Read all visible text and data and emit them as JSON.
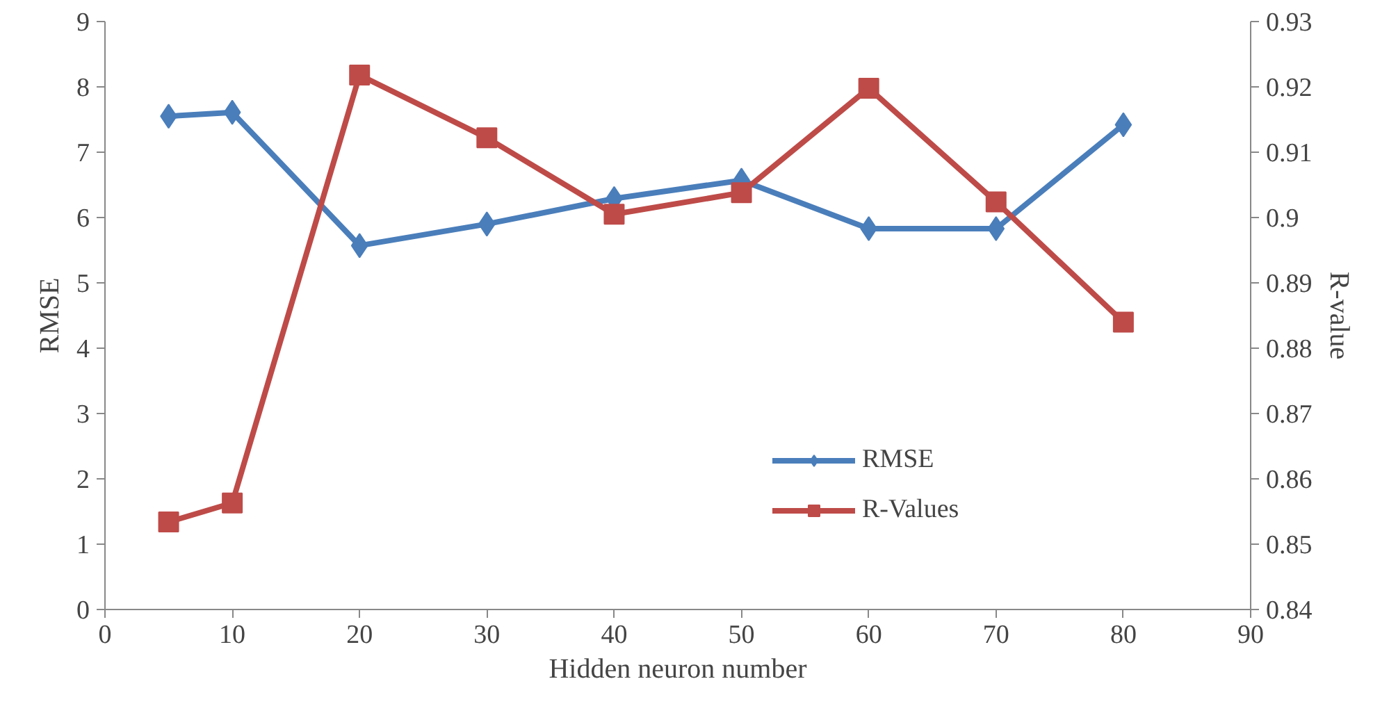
{
  "chart_data": {
    "type": "line",
    "xlabel": "Hidden neuron number",
    "ylabel": "RMSE",
    "y2label": "R-value",
    "x": [
      5,
      10,
      20,
      30,
      40,
      50,
      60,
      70,
      80
    ],
    "series": [
      {
        "name": "RMSE",
        "color": "#4a7ebb",
        "marker": "diamond",
        "values": [
          7.55,
          7.61,
          5.57,
          5.9,
          6.29,
          6.57,
          5.83,
          5.83,
          7.42
        ]
      },
      {
        "name": "R-Values",
        "color": "#be4b48",
        "marker": "square",
        "axis": "y2",
        "values": [
          0.8534,
          0.8563,
          0.9218,
          0.9122,
          0.9005,
          0.9038,
          0.9198,
          0.9024,
          0.884
        ]
      }
    ],
    "xlim": [
      0,
      90
    ],
    "xticks": [
      0,
      10,
      20,
      30,
      40,
      50,
      60,
      70,
      80,
      90
    ],
    "ylim": [
      0,
      9
    ],
    "yticks": [
      0,
      1,
      2,
      3,
      4,
      5,
      6,
      7,
      8,
      9
    ],
    "y2lim": [
      0.84,
      0.93
    ],
    "y2ticks": [
      0.84,
      0.85,
      0.86,
      0.87,
      0.88,
      0.89,
      0.9,
      0.91,
      0.92,
      0.93
    ],
    "grid": false,
    "legend": "bottom right"
  }
}
